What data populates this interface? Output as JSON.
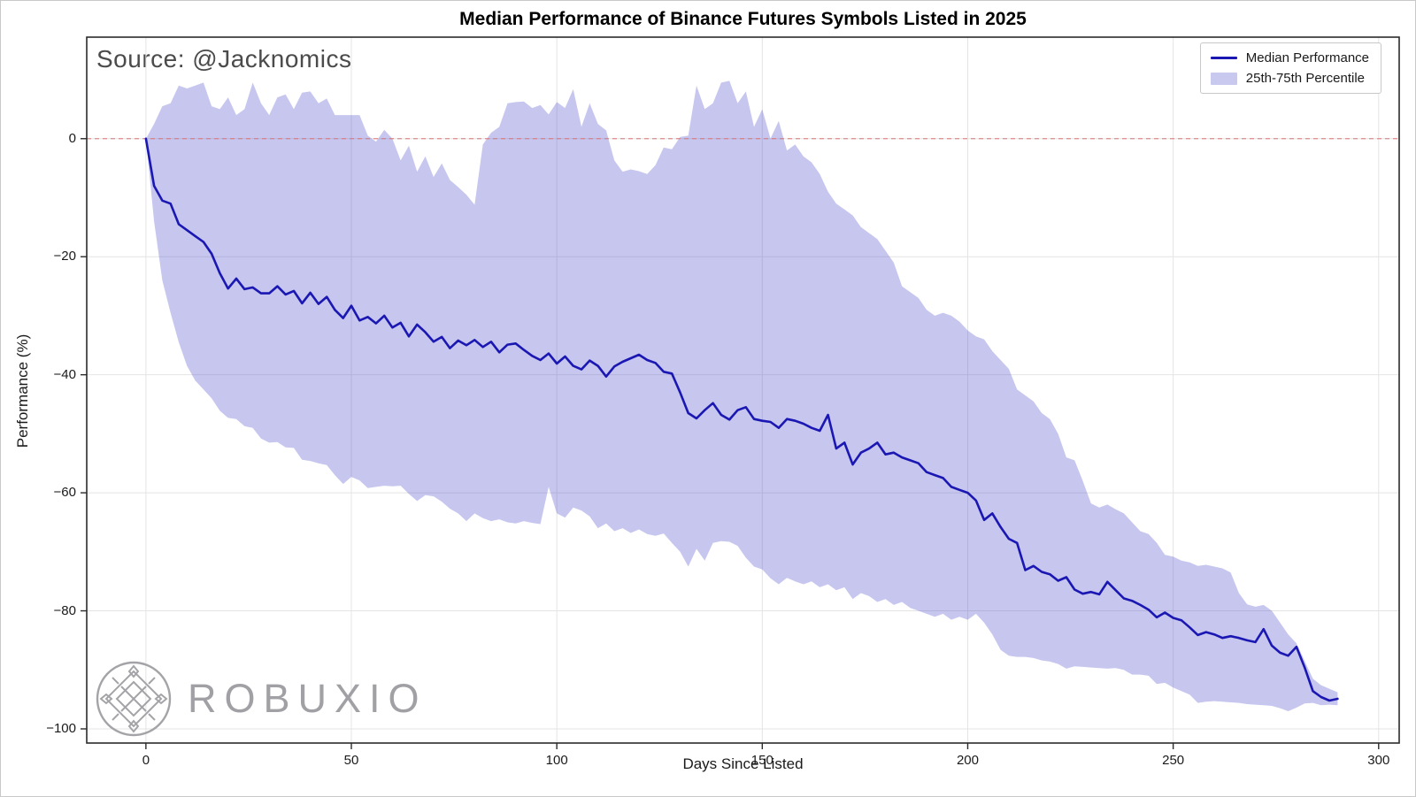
{
  "figure": {
    "title": "Median Performance of Binance Futures Symbols Listed in 2025"
  },
  "annotations": {
    "source": "Source: @Jacknomics",
    "watermark": "ROBUXIO"
  },
  "axes": {
    "x": {
      "label": "Days Since Listed",
      "ticklabels": [
        "0",
        "50",
        "100",
        "150",
        "200",
        "250",
        "300"
      ]
    },
    "y": {
      "label": "Performance (%)",
      "ticklabels": [
        "0",
        "−20",
        "−40",
        "−60",
        "−80",
        "−100"
      ]
    }
  },
  "legend": {
    "items": [
      {
        "label": "Median Performance",
        "type": "line"
      },
      {
        "label": "25th-75th Percentile",
        "type": "patch"
      }
    ]
  },
  "colors": {
    "median_line": "#1a17b2",
    "band_fill_solid": "#c9c9ef",
    "band_fill_rgba": "rgba(60,60,200,0.29)",
    "zero_line": "#d97474",
    "grid": "#e4e4e4",
    "spine": "#2b2b2b",
    "tick_text": "#1a1a1a",
    "source_text": "#4b4b4b",
    "watermark": "#9d9da1"
  },
  "chart_data": {
    "type": "line",
    "title": "Median Performance of Binance Futures Symbols Listed in 2025",
    "xlabel": "Days Since Listed",
    "ylabel": "Performance (%)",
    "xlim": [
      -14.4,
      305
    ],
    "ylim": [
      -102.4,
      17.2
    ],
    "grid": true,
    "legend_position": "upper right",
    "zero_reference_line": 0,
    "x_gridlines": [
      0,
      50,
      100,
      150,
      200,
      250,
      300
    ],
    "y_gridlines": [
      0,
      -20,
      -40,
      -60,
      -80,
      -100
    ],
    "x": [
      0,
      2,
      4,
      6,
      8,
      10,
      12,
      14,
      16,
      18,
      20,
      22,
      24,
      26,
      28,
      30,
      32,
      34,
      36,
      38,
      40,
      42,
      44,
      46,
      48,
      50,
      52,
      54,
      56,
      58,
      60,
      62,
      64,
      66,
      68,
      70,
      72,
      74,
      76,
      78,
      80,
      82,
      84,
      86,
      88,
      90,
      92,
      94,
      96,
      98,
      100,
      102,
      104,
      106,
      108,
      110,
      112,
      114,
      116,
      118,
      120,
      122,
      124,
      126,
      128,
      130,
      132,
      134,
      136,
      138,
      140,
      142,
      144,
      146,
      148,
      150,
      152,
      154,
      156,
      158,
      160,
      162,
      164,
      166,
      168,
      170,
      172,
      174,
      176,
      178,
      180,
      182,
      184,
      186,
      188,
      190,
      192,
      194,
      196,
      198,
      200,
      202,
      204,
      206,
      208,
      210,
      212,
      214,
      216,
      218,
      220,
      222,
      224,
      226,
      228,
      230,
      232,
      234,
      236,
      238,
      240,
      242,
      244,
      246,
      248,
      250,
      252,
      254,
      256,
      258,
      260,
      262,
      264,
      266,
      268,
      270,
      272,
      274,
      276,
      278,
      280,
      282,
      284,
      286,
      288,
      290
    ],
    "series": [
      {
        "name": "Median Performance",
        "values": [
          0,
          -8,
          -10.5,
          -11,
          -14.5,
          -15.5,
          -16.5,
          -17.5,
          -19.5,
          -22.8,
          -25.4,
          -23.7,
          -25.5,
          -25.2,
          -26.2,
          -26.2,
          -25,
          -26.4,
          -25.8,
          -27.9,
          -26.1,
          -28,
          -26.8,
          -29,
          -30.4,
          -28.3,
          -30.8,
          -30.2,
          -31.3,
          -30,
          -32,
          -31.2,
          -33.5,
          -31.5,
          -32.8,
          -34.4,
          -33.6,
          -35.5,
          -34.2,
          -35,
          -34.1,
          -35.3,
          -34.4,
          -36.2,
          -34.9,
          -34.7,
          -35.8,
          -36.8,
          -37.5,
          -36.4,
          -38.1,
          -36.9,
          -38.5,
          -39.1,
          -37.6,
          -38.5,
          -40.3,
          -38.6,
          -37.8,
          -37.2,
          -36.6,
          -37.5,
          -38,
          -39.5,
          -39.8,
          -43,
          -46.5,
          -47.4,
          -46,
          -44.8,
          -46.8,
          -47.6,
          -46,
          -45.5,
          -47.5,
          -47.8,
          -48,
          -49,
          -47.5,
          -47.8,
          -48.3,
          -49,
          -49.5,
          -46.8,
          -52.5,
          -51.5,
          -55.2,
          -53.2,
          -52.5,
          -51.5,
          -53.5,
          -53.2,
          -54,
          -54.5,
          -55,
          -56.5,
          -57,
          -57.5,
          -59,
          -59.5,
          -60,
          -61.3,
          -64.6,
          -63.5,
          -65.8,
          -67.8,
          -68.5,
          -73.1,
          -72.4,
          -73.4,
          -73.8,
          -74.9,
          -74.3,
          -76.4,
          -77.1,
          -76.8,
          -77.2,
          -75.1,
          -76.5,
          -77.9,
          -78.3,
          -79,
          -79.8,
          -81.1,
          -80.3,
          -81.2,
          -81.6,
          -82.8,
          -84.1,
          -83.6,
          -84,
          -84.6,
          -84.3,
          -84.6,
          -85,
          -85.3,
          -83.1,
          -85.9,
          -87.1,
          -87.6,
          -86.1,
          -89.6,
          -93.6,
          -94.6,
          -95.2,
          -94.9
        ]
      },
      {
        "name": "25th Percentile",
        "values": [
          0,
          -14,
          -24,
          -29.5,
          -34.5,
          -38.5,
          -41,
          -42.5,
          -44,
          -46.1,
          -47.3,
          -47.5,
          -48.7,
          -49,
          -50.8,
          -51.5,
          -51.4,
          -52.3,
          -52.4,
          -54.4,
          -54.6,
          -55,
          -55.3,
          -57,
          -58.5,
          -57.3,
          -57.9,
          -59.2,
          -59,
          -58.8,
          -58.9,
          -58.8,
          -60.2,
          -61.4,
          -60.4,
          -60.6,
          -61.5,
          -62.7,
          -63.5,
          -64.8,
          -63.5,
          -64.3,
          -64.8,
          -64.5,
          -65,
          -65.2,
          -64.8,
          -65.1,
          -65.3,
          -59,
          -63.5,
          -64.2,
          -62.5,
          -63,
          -64,
          -66,
          -65.2,
          -66.5,
          -66,
          -66.8,
          -66.2,
          -67,
          -67.3,
          -66.9,
          -68.5,
          -70,
          -72.5,
          -69.5,
          -71.5,
          -68.5,
          -68.2,
          -68.3,
          -69,
          -71,
          -72.5,
          -73,
          -74.5,
          -75.5,
          -74.4,
          -75,
          -75.5,
          -75,
          -76,
          -75.5,
          -76.5,
          -76,
          -78,
          -77,
          -77.5,
          -78.5,
          -78,
          -79,
          -78.5,
          -79.5,
          -80,
          -80.5,
          -81,
          -80.5,
          -81.5,
          -81,
          -81.5,
          -80.5,
          -82,
          -84,
          -86.6,
          -87.6,
          -87.8,
          -87.8,
          -88,
          -88.4,
          -88.6,
          -89,
          -89.8,
          -89.4,
          -89.5,
          -89.6,
          -89.7,
          -89.8,
          -89.7,
          -90,
          -90.8,
          -90.8,
          -91,
          -92.4,
          -92.2,
          -93,
          -93.6,
          -94.2,
          -95.6,
          -95.4,
          -95.3,
          -95.4,
          -95.5,
          -95.6,
          -95.8,
          -95.9,
          -96,
          -96.1,
          -96.5,
          -97,
          -96.4,
          -95.7,
          -95.6,
          -96,
          -95.9,
          -96
        ]
      },
      {
        "name": "75th Percentile",
        "values": [
          0,
          2.5,
          5.5,
          6,
          9,
          8.5,
          9,
          9.5,
          5.5,
          5,
          7,
          4,
          5,
          9.5,
          6,
          4,
          7,
          7.5,
          5,
          7.8,
          8,
          6,
          6.8,
          4,
          4,
          4,
          4,
          0.5,
          -0.5,
          1.5,
          0,
          -3.7,
          -1.2,
          -5.6,
          -3,
          -6.5,
          -4.2,
          -7,
          -8.2,
          -9.5,
          -11.2,
          -1,
          1,
          2,
          6,
          6.2,
          6.3,
          5.2,
          5.7,
          4.1,
          6.2,
          5.2,
          8.4,
          2,
          6,
          2.5,
          1.4,
          -3.7,
          -5.6,
          -5.2,
          -5.5,
          -6,
          -4.5,
          -1.5,
          -1.8,
          0.3,
          0.5,
          9,
          5,
          6,
          9.5,
          9.8,
          6,
          8,
          2,
          5,
          0,
          3,
          -2,
          -1,
          -3,
          -4,
          -6,
          -9,
          -11,
          -12,
          -13,
          -15,
          -16,
          -17,
          -19,
          -21,
          -25,
          -26,
          -27,
          -29,
          -30,
          -29.5,
          -30,
          -31,
          -32.5,
          -33.5,
          -34,
          -36,
          -37.5,
          -39,
          -42.5,
          -43.5,
          -44.5,
          -46.5,
          -47.5,
          -50,
          -54,
          -54.5,
          -58,
          -61.8,
          -62.5,
          -62,
          -62.8,
          -63.5,
          -65,
          -66.5,
          -67,
          -68.5,
          -70.5,
          -70.8,
          -71.5,
          -71.8,
          -72.4,
          -72.2,
          -72.5,
          -72.8,
          -73.5,
          -77,
          -78.9,
          -79.3,
          -79,
          -80,
          -82,
          -84,
          -85.5,
          -88.5,
          -91.5,
          -92.6,
          -93.2,
          -93.8
        ]
      }
    ]
  }
}
